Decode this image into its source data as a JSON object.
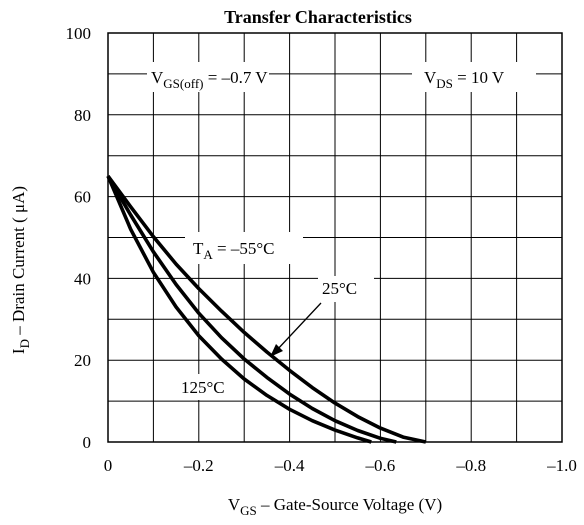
{
  "chart_data": {
    "type": "line",
    "title": "Transfer Characteristics",
    "xlabel": {
      "main": "V",
      "sub": "GS",
      "rest": " – Gate-Source Voltage (V)"
    },
    "ylabel": {
      "main": "I",
      "sub": "D",
      "rest": " – Drain Current ( μA)"
    },
    "xlim": [
      0,
      -1.0
    ],
    "ylim": [
      0,
      100
    ],
    "x_ticks": [
      0,
      -0.2,
      -0.4,
      -0.6,
      -0.8,
      -1.0
    ],
    "x_tick_labels": [
      "0",
      "–0.2",
      "–0.4",
      "–0.6",
      "–0.8",
      "–1.0"
    ],
    "y_ticks": [
      0,
      20,
      40,
      60,
      80,
      100
    ],
    "y_tick_labels": [
      "0",
      "20",
      "40",
      "60",
      "80",
      "100"
    ],
    "x_grid_step": 0.1,
    "y_grid_step": 10,
    "grid": true,
    "series": [
      {
        "name": "T_A = –55°C",
        "x": [
          0,
          -0.05,
          -0.1,
          -0.15,
          -0.2,
          -0.25,
          -0.3,
          -0.35,
          -0.4,
          -0.45,
          -0.5,
          -0.55,
          -0.6,
          -0.65,
          -0.7
        ],
        "y": [
          65,
          57.5,
          50.2,
          43.5,
          37.5,
          32,
          26.8,
          22,
          17.5,
          13.3,
          9.5,
          6.2,
          3.4,
          1.2,
          0
        ]
      },
      {
        "name": "25°C",
        "x": [
          0,
          -0.05,
          -0.1,
          -0.15,
          -0.2,
          -0.25,
          -0.3,
          -0.35,
          -0.4,
          -0.45,
          -0.5,
          -0.55,
          -0.6,
          -0.635
        ],
        "y": [
          65,
          55.5,
          46.5,
          38.5,
          31.5,
          25.5,
          20.3,
          15.8,
          11.7,
          8.2,
          5.2,
          2.8,
          0.9,
          0
        ]
      },
      {
        "name": "125°C",
        "x": [
          0,
          -0.05,
          -0.1,
          -0.15,
          -0.2,
          -0.25,
          -0.3,
          -0.35,
          -0.4,
          -0.45,
          -0.5,
          -0.55,
          -0.58
        ],
        "y": [
          65,
          52,
          41.5,
          33,
          26,
          20.3,
          15.4,
          11.4,
          8,
          5.2,
          2.9,
          1,
          0
        ]
      }
    ],
    "annotations": {
      "vgs_off": {
        "main": "V",
        "sub": "GS(off)",
        "rest": " = –0.7 V"
      },
      "vds": {
        "main": "V",
        "sub": "DS",
        "rest": " = 10 V"
      },
      "ta": {
        "main": "T",
        "sub": "A",
        "rest": " = –55°C"
      },
      "t25": "25°C",
      "t125": "125°C"
    }
  }
}
